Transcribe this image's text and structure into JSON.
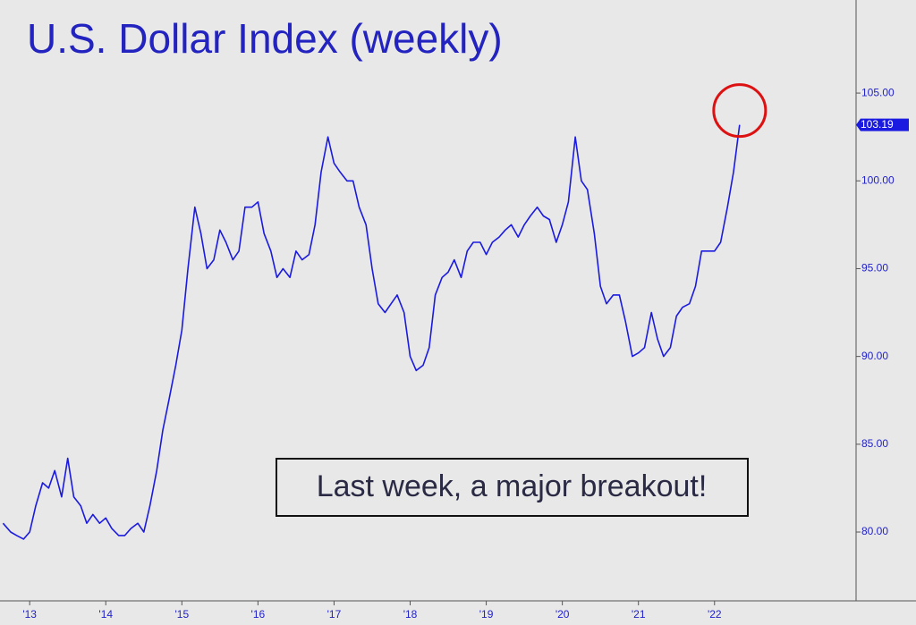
{
  "chart_data": {
    "type": "line",
    "title": "U.S. Dollar Index (weekly)",
    "annotation": "Last week, a major breakout!",
    "last_value_label": {
      "value": 103.19,
      "label": "103.19"
    },
    "color": "#1a1ae0",
    "x": [
      2012.65,
      2012.75,
      2012.83,
      2012.92,
      2013.0,
      2013.08,
      2013.17,
      2013.25,
      2013.33,
      2013.42,
      2013.5,
      2013.58,
      2013.67,
      2013.75,
      2013.83,
      2013.92,
      2014.0,
      2014.08,
      2014.17,
      2014.25,
      2014.33,
      2014.42,
      2014.5,
      2014.58,
      2014.67,
      2014.75,
      2014.83,
      2014.92,
      2015.0,
      2015.08,
      2015.17,
      2015.25,
      2015.33,
      2015.42,
      2015.5,
      2015.58,
      2015.67,
      2015.75,
      2015.83,
      2015.92,
      2016.0,
      2016.08,
      2016.17,
      2016.25,
      2016.33,
      2016.42,
      2016.5,
      2016.58,
      2016.67,
      2016.75,
      2016.83,
      2016.92,
      2017.0,
      2017.08,
      2017.17,
      2017.25,
      2017.33,
      2017.42,
      2017.5,
      2017.58,
      2017.67,
      2017.75,
      2017.83,
      2017.92,
      2018.0,
      2018.08,
      2018.17,
      2018.25,
      2018.33,
      2018.42,
      2018.5,
      2018.58,
      2018.67,
      2018.75,
      2018.83,
      2018.92,
      2019.0,
      2019.08,
      2019.17,
      2019.25,
      2019.33,
      2019.42,
      2019.5,
      2019.58,
      2019.67,
      2019.75,
      2019.83,
      2019.92,
      2020.0,
      2020.08,
      2020.17,
      2020.25,
      2020.33,
      2020.42,
      2020.5,
      2020.58,
      2020.67,
      2020.75,
      2020.83,
      2020.92,
      2021.0,
      2021.08,
      2021.17,
      2021.25,
      2021.33,
      2021.42,
      2021.5,
      2021.58,
      2021.67,
      2021.75,
      2021.83,
      2021.92,
      2022.0,
      2022.08,
      2022.17,
      2022.25,
      2022.33
    ],
    "values": [
      80.5,
      80.0,
      79.8,
      79.6,
      80.0,
      81.5,
      82.8,
      82.5,
      83.5,
      82.0,
      84.2,
      82.0,
      81.5,
      80.5,
      81.0,
      80.5,
      80.8,
      80.2,
      79.8,
      79.8,
      80.2,
      80.5,
      80.0,
      81.5,
      83.5,
      85.8,
      87.5,
      89.5,
      91.5,
      95.0,
      98.5,
      97.0,
      95.0,
      95.5,
      97.2,
      96.5,
      95.5,
      96.0,
      98.5,
      98.5,
      98.8,
      97.0,
      96.0,
      94.5,
      95.0,
      94.5,
      96.0,
      95.5,
      95.8,
      97.5,
      100.5,
      102.5,
      101.0,
      100.5,
      100.0,
      100.0,
      98.5,
      97.5,
      95.0,
      93.0,
      92.5,
      93.0,
      93.5,
      92.5,
      90.0,
      89.2,
      89.5,
      90.5,
      93.5,
      94.5,
      94.8,
      95.5,
      94.5,
      96.0,
      96.5,
      96.5,
      95.8,
      96.5,
      96.8,
      97.2,
      97.5,
      96.8,
      97.5,
      98.0,
      98.5,
      98.0,
      97.8,
      96.5,
      97.5,
      98.8,
      102.5,
      100.0,
      99.5,
      97.0,
      94.0,
      93.0,
      93.5,
      93.5,
      92.0,
      90.0,
      90.2,
      90.5,
      92.5,
      91.0,
      90.0,
      90.5,
      92.3,
      92.8,
      93.0,
      94.0,
      96.0,
      96.0,
      96.0,
      96.5,
      98.5,
      100.5,
      103.19
    ],
    "xlim": [
      2012.61,
      2023.86
    ],
    "ylim": [
      76.08,
      110.3
    ],
    "xticks": [
      {
        "value": 2013,
        "label": "'13"
      },
      {
        "value": 2014,
        "label": "'14"
      },
      {
        "value": 2015,
        "label": "'15"
      },
      {
        "value": 2016,
        "label": "'16"
      },
      {
        "value": 2017,
        "label": "'17"
      },
      {
        "value": 2018,
        "label": "'18"
      },
      {
        "value": 2019,
        "label": "'19"
      },
      {
        "value": 2020,
        "label": "'20"
      },
      {
        "value": 2021,
        "label": "'21"
      },
      {
        "value": 2022,
        "label": "'22"
      }
    ],
    "yticks": [
      {
        "value": 80,
        "label": "80.00"
      },
      {
        "value": 85,
        "label": "85.00"
      },
      {
        "value": 90,
        "label": "90.00"
      },
      {
        "value": 95,
        "label": "95.00"
      },
      {
        "value": 100,
        "label": "100.00"
      },
      {
        "value": 105,
        "label": "105.00"
      }
    ]
  }
}
